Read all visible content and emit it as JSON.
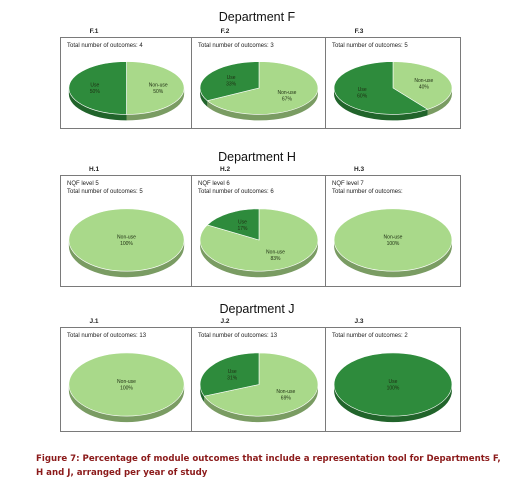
{
  "chart_data": [
    {
      "department": "Department F",
      "charts": [
        {
          "id": "F.1",
          "type": "pie",
          "lines": [
            "Total number of outcomes: 4"
          ],
          "slices": [
            {
              "label": "Use",
              "percent_label": "50%",
              "value": 50,
              "color": "#2e8b3c"
            },
            {
              "label": "Non-use",
              "percent_label": "50%",
              "value": 50,
              "color": "#a9d98a"
            }
          ]
        },
        {
          "id": "F.2",
          "type": "pie",
          "lines": [
            "Total number of outcomes: 3"
          ],
          "slices": [
            {
              "label": "Use",
              "percent_label": "33%",
              "value": 33,
              "color": "#2e8b3c"
            },
            {
              "label": "Non-use",
              "percent_label": "67%",
              "value": 67,
              "color": "#a9d98a"
            }
          ]
        },
        {
          "id": "F.3",
          "type": "pie",
          "lines": [
            "Total number of outcomes: 5"
          ],
          "slices": [
            {
              "label": "Use",
              "percent_label": "60%",
              "value": 60,
              "color": "#2e8b3c"
            },
            {
              "label": "Non-use",
              "percent_label": "40%",
              "value": 40,
              "color": "#a9d98a"
            }
          ]
        }
      ]
    },
    {
      "department": "Department H",
      "charts": [
        {
          "id": "H.1",
          "type": "pie",
          "lines": [
            "NQF level 5",
            "Total number of outcomes: 5"
          ],
          "slices": [
            {
              "label": "Non-use",
              "percent_label": "100%",
              "value": 100,
              "color": "#a9d98a"
            }
          ]
        },
        {
          "id": "H.2",
          "type": "pie",
          "lines": [
            "NQF level 6",
            "Total number of outcomes: 6"
          ],
          "slices": [
            {
              "label": "Use",
              "percent_label": "17%",
              "value": 17,
              "color": "#2e8b3c"
            },
            {
              "label": "Non-use",
              "percent_label": "83%",
              "value": 83,
              "color": "#a9d98a"
            }
          ]
        },
        {
          "id": "H.3",
          "type": "pie",
          "lines": [
            "NQF level 7",
            "Total number of outcomes:"
          ],
          "slices": [
            {
              "label": "Non-use",
              "percent_label": "100%",
              "value": 100,
              "color": "#a9d98a"
            }
          ]
        }
      ]
    },
    {
      "department": "Department J",
      "charts": [
        {
          "id": "J.1",
          "type": "pie",
          "lines": [
            "Total number of outcomes: 13"
          ],
          "slices": [
            {
              "label": "Non-use",
              "percent_label": "100%",
              "value": 100,
              "color": "#a9d98a"
            }
          ]
        },
        {
          "id": "J.2",
          "type": "pie",
          "lines": [
            "Total number of outcomes: 13"
          ],
          "slices": [
            {
              "label": "Use",
              "percent_label": "31%",
              "value": 31,
              "color": "#2e8b3c"
            },
            {
              "label": "Non-use",
              "percent_label": "69%",
              "value": 69,
              "color": "#a9d98a"
            }
          ]
        },
        {
          "id": "J.3",
          "type": "pie",
          "lines": [
            "Total number of outcomes: 2"
          ],
          "slices": [
            {
              "label": "Use",
              "percent_label": "100%",
              "value": 100,
              "color": "#2e8b3c"
            }
          ]
        }
      ]
    }
  ],
  "caption": "Figure 7: Percentage of module outcomes that include a representation tool for Departments F, H and J, arranged per year of study"
}
